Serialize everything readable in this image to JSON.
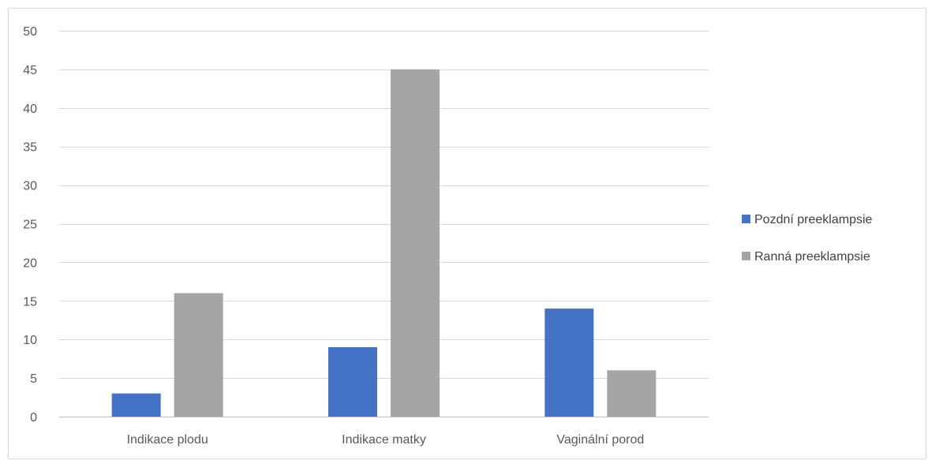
{
  "chart_data": {
    "type": "bar",
    "title": "",
    "xlabel": "",
    "ylabel": "",
    "categories": [
      "Indikace plodu",
      "Indikace matky",
      "Vaginální porod"
    ],
    "series": [
      {
        "name": "Pozdní preeklampsie",
        "color": "#4472c4",
        "values": [
          3,
          9,
          14
        ]
      },
      {
        "name": "Ranná preeklampsie",
        "color": "#a5a5a5",
        "values": [
          16,
          45,
          6
        ]
      }
    ],
    "ylim": [
      0,
      50
    ],
    "yticks": [
      0,
      5,
      10,
      15,
      20,
      25,
      30,
      35,
      40,
      45,
      50
    ],
    "grid": true,
    "legend": "right"
  }
}
